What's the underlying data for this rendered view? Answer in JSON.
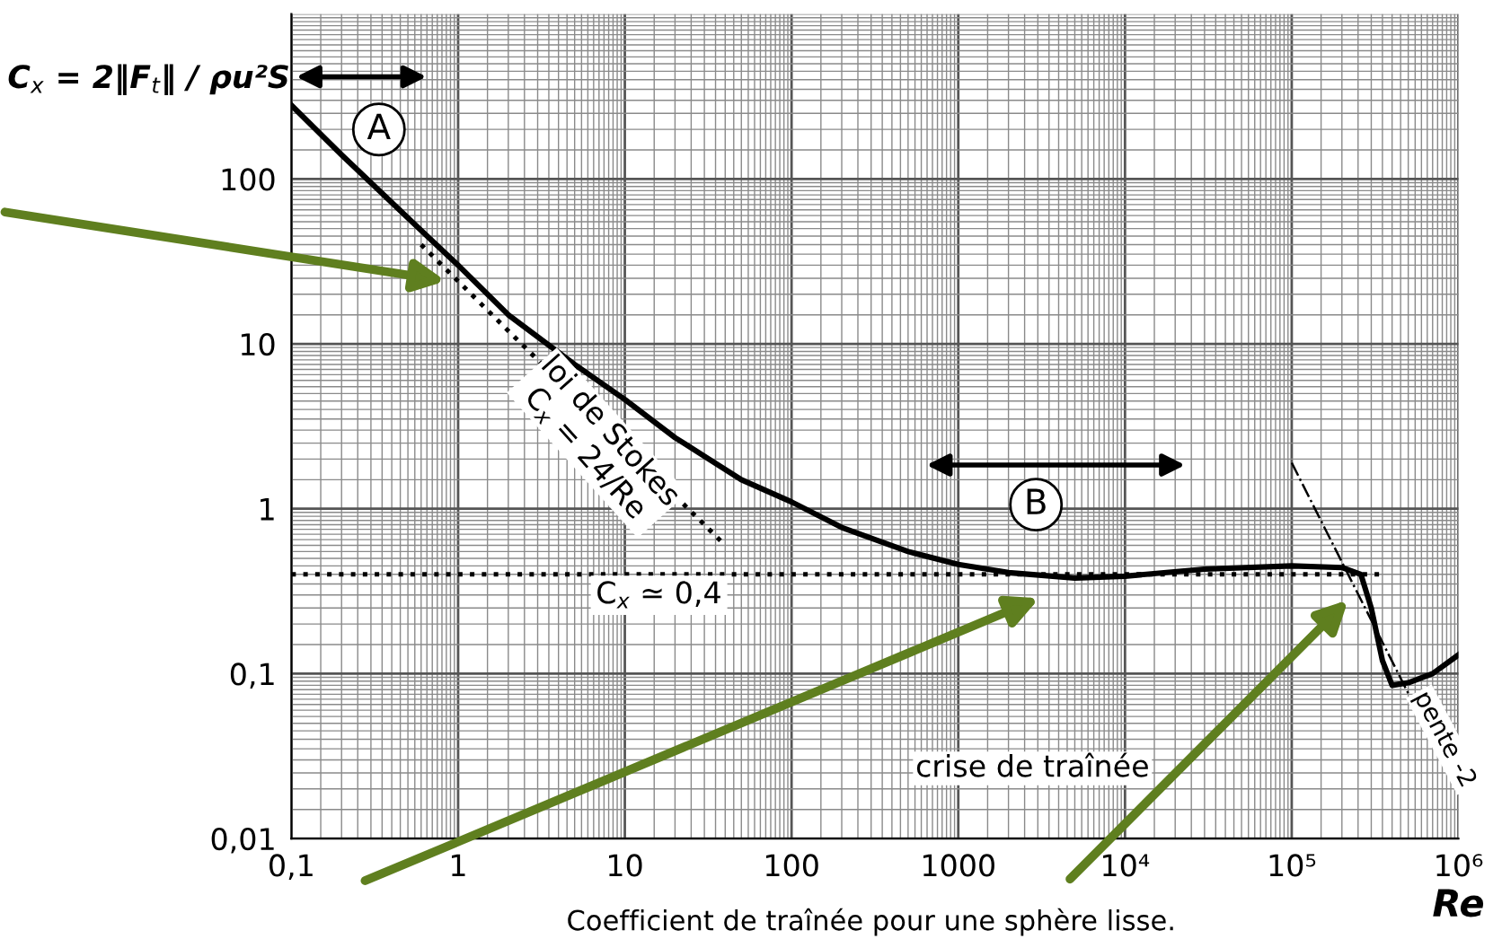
{
  "chart_data": {
    "type": "line",
    "ylabel": "C$_{x}$ = 2‖F$_{t}$‖ / ρu²S",
    "xlabel": "Re",
    "log": "xy",
    "grid": true,
    "legend": false,
    "xlim": [
      0.1,
      1000000
    ],
    "xticks": [
      {
        "value": 0.1,
        "label": "0,1"
      },
      1,
      10,
      100,
      1000,
      {
        "value": 10000,
        "label": "10⁴"
      },
      {
        "value": 100000,
        "label": "10⁵"
      },
      {
        "value": 1000000,
        "label": "10⁶"
      }
    ],
    "ylim": [
      0.01,
      1000
    ],
    "yticks": [
      {
        "value": 0.01,
        "label": "0,01"
      },
      {
        "value": 0.1,
        "label": "0,1"
      },
      1,
      10,
      100
    ],
    "series": [
      {
        "color": "#000000",
        "line_style": "solid",
        "x": [
          0.1,
          0.2,
          0.5,
          1,
          2,
          5,
          10,
          20,
          50,
          100,
          200,
          500,
          1000,
          2000,
          5000,
          10000,
          30000,
          100000,
          200000,
          260000,
          300000,
          350000,
          400000,
          500000,
          700000,
          1000000
        ],
        "values": [
          280,
          140,
          58,
          30,
          15,
          7.5,
          4.6,
          2.7,
          1.5,
          1.1,
          0.77,
          0.55,
          0.46,
          0.41,
          0.38,
          0.39,
          0.43,
          0.45,
          0.44,
          0.4,
          0.25,
          0.12,
          0.085,
          0.088,
          0.1,
          0.13
        ]
      },
      {
        "color": "#000000",
        "line_style": "dotted",
        "x": [
          0.6,
          40
        ],
        "values": [
          40,
          0.6
        ]
      },
      {
        "color": "#000000",
        "line_style": "dotted",
        "x": [
          0.1,
          350000
        ],
        "values": [
          0.4,
          0.4
        ]
      },
      {
        "color": "#000000",
        "line_style": "dashdot",
        "x": [
          100000,
          1000000
        ],
        "values": [
          1.9,
          0.019
        ]
      }
    ],
    "annotations": [
      "A",
      "B",
      "loi de Stokes\nC$_{x}$ = 24/Re",
      "C$_{x}$ ≃ 0,4",
      "crise de traînée",
      "pente -2",
      "Coefficient de traînée pour une sphère lisse."
    ]
  }
}
